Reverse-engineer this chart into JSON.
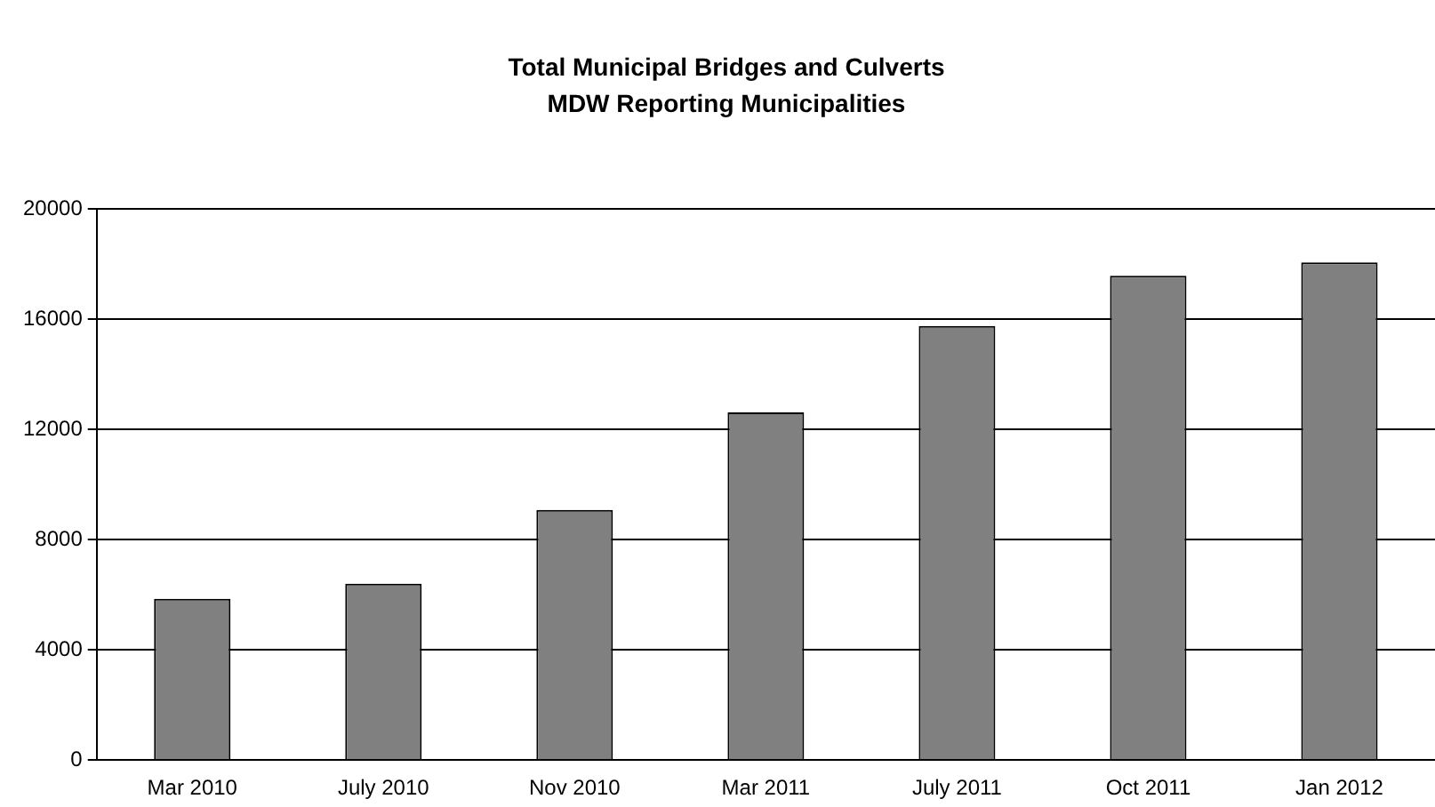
{
  "chart_data": {
    "type": "bar",
    "title": "Total Municipal Bridges and Culverts",
    "subtitle": "MDW Reporting Municipalities",
    "categories": [
      "Mar 2010",
      "July 2010",
      "Nov 2010",
      "Mar 2011",
      "July 2011",
      "Oct 2011",
      "Jan 2012"
    ],
    "values": [
      5850,
      6400,
      9080,
      12620,
      15760,
      17580,
      18060
    ],
    "color": "#808080",
    "ylim": [
      0,
      20000
    ],
    "yticks": [
      0,
      4000,
      8000,
      12000,
      16000,
      20000
    ],
    "grid": "y",
    "legend": false
  }
}
